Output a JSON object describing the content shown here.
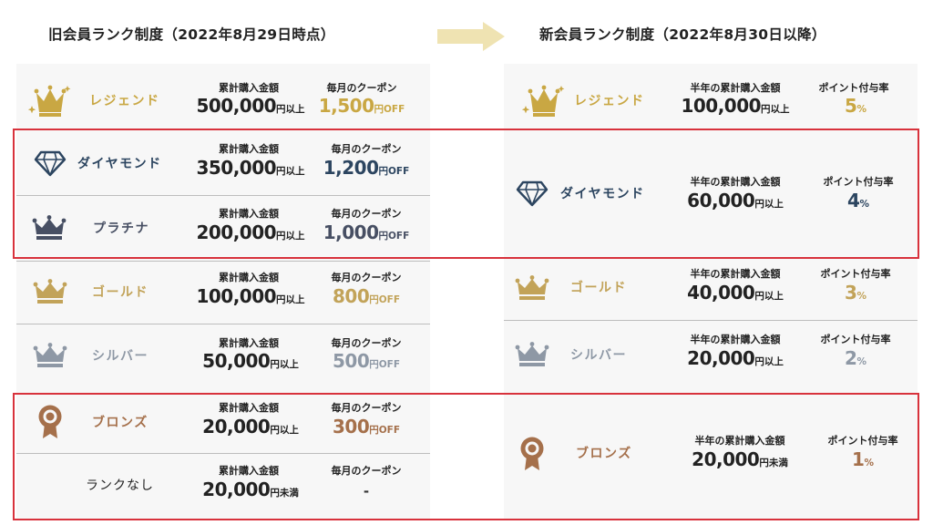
{
  "headers": {
    "old": "旧会員ランク制度（2022年8月29日時点）",
    "new": "新会員ランク制度（2022年8月30日以降）"
  },
  "colors": {
    "legend": "#c9a743",
    "diamond": "#2c4560",
    "platinum": "#474f63",
    "gold": "#c2a359",
    "silver": "#8e98a5",
    "bronze": "#a5704b",
    "arrow": "#efe3b2",
    "highlight": "#d8323c"
  },
  "old_ranks": [
    {
      "name": "レジェンド",
      "icon": "crown-sparkle-icon",
      "label1": "累計購入金額",
      "amount": "500,000",
      "amount_unit": "円以上",
      "label2": "毎月のクーポン",
      "coupon": "1,500",
      "coupon_unit": "円OFF"
    },
    {
      "name": "ダイヤモンド",
      "icon": "diamond-icon",
      "label1": "累計購入金額",
      "amount": "350,000",
      "amount_unit": "円以上",
      "label2": "毎月のクーポン",
      "coupon": "1,200",
      "coupon_unit": "円OFF"
    },
    {
      "name": "プラチナ",
      "icon": "crown-icon",
      "label1": "累計購入金額",
      "amount": "200,000",
      "amount_unit": "円以上",
      "label2": "毎月のクーポン",
      "coupon": "1,000",
      "coupon_unit": "円OFF"
    },
    {
      "name": "ゴールド",
      "icon": "crown-icon",
      "label1": "累計購入金額",
      "amount": "100,000",
      "amount_unit": "円以上",
      "label2": "毎月のクーポン",
      "coupon": "800",
      "coupon_unit": "円OFF"
    },
    {
      "name": "シルバー",
      "icon": "crown-icon",
      "label1": "累計購入金額",
      "amount": "50,000",
      "amount_unit": "円以上",
      "label2": "毎月のクーポン",
      "coupon": "500",
      "coupon_unit": "円OFF"
    },
    {
      "name": "ブロンズ",
      "icon": "medal-icon",
      "label1": "累計購入金額",
      "amount": "20,000",
      "amount_unit": "円以上",
      "label2": "毎月のクーポン",
      "coupon": "300",
      "coupon_unit": "円OFF"
    },
    {
      "name": "ランクなし",
      "icon": "",
      "label1": "累計購入金額",
      "amount": "20,000",
      "amount_unit": "円未満",
      "label2": "毎月のクーポン",
      "coupon": "-",
      "coupon_unit": ""
    }
  ],
  "new_ranks": [
    {
      "name": "レジェンド",
      "icon": "crown-sparkle-icon",
      "label1": "半年の累計購入金額",
      "amount": "100,000",
      "amount_unit": "円以上",
      "label2": "ポイント付与率",
      "rate": "5",
      "rate_unit": "%"
    },
    {
      "name": "ダイヤモンド",
      "icon": "diamond-icon",
      "label1": "半年の累計購入金額",
      "amount": "60,000",
      "amount_unit": "円以上",
      "label2": "ポイント付与率",
      "rate": "4",
      "rate_unit": "%"
    },
    {
      "name": "ゴールド",
      "icon": "crown-icon",
      "label1": "半年の累計購入金額",
      "amount": "40,000",
      "amount_unit": "円以上",
      "label2": "ポイント付与率",
      "rate": "3",
      "rate_unit": "%"
    },
    {
      "name": "シルバー",
      "icon": "crown-icon",
      "label1": "半年の累計購入金額",
      "amount": "20,000",
      "amount_unit": "円以上",
      "label2": "ポイント付与率",
      "rate": "2",
      "rate_unit": "%"
    },
    {
      "name": "ブロンズ",
      "icon": "medal-icon",
      "label1": "半年の累計購入金額",
      "amount": "20,000",
      "amount_unit": "円未満",
      "label2": "ポイント付与率",
      "rate": "1",
      "rate_unit": "%"
    }
  ]
}
